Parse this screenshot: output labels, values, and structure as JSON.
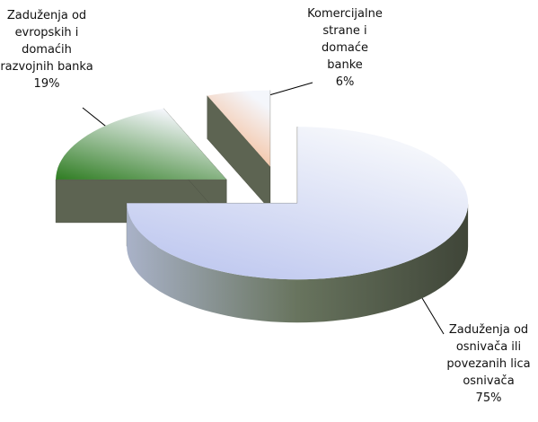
{
  "chart_data": {
    "type": "pie",
    "categories": [
      "Zaduženja od osnivača ili povezanih lica osnivača",
      "Zaduženja od evropskih i domaćih razvojnih banka",
      "Komercijalne strane i domaće banke"
    ],
    "values": [
      75,
      19,
      6
    ],
    "value_labels": [
      "75%",
      "19%",
      "6%"
    ],
    "colors": [
      "#b8c2ee",
      "#2f7d22",
      "#f4a874"
    ]
  }
}
